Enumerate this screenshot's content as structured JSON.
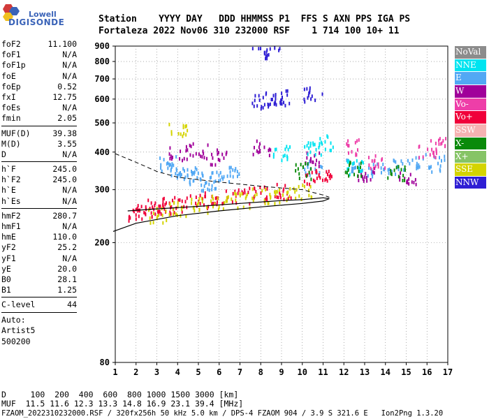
{
  "logo": {
    "top": "Lowell",
    "bottom": "DIGISONDE"
  },
  "header": {
    "row1": "Station    YYYY DAY   DDD HHMMSS P1  FFS S AXN PPS IGA PS",
    "row2": "Fortaleza 2022 Nov06 310 232000 RSF    1 714 100 10+ 11"
  },
  "params": [
    {
      "name": "foF2",
      "value": "11.100"
    },
    {
      "name": "foF1",
      "value": "N/A"
    },
    {
      "name": "foF1p",
      "value": "N/A"
    },
    {
      "name": "foE",
      "value": "N/A"
    },
    {
      "name": "foEp",
      "value": "0.52"
    },
    {
      "name": "fxI",
      "value": "12.75"
    },
    {
      "name": "foEs",
      "value": "N/A"
    },
    {
      "name": "fmin",
      "value": "2.05"
    },
    {
      "name": "MUF(D)",
      "value": "39.38"
    },
    {
      "name": "M(D)",
      "value": "3.55"
    },
    {
      "name": "D",
      "value": "N/A"
    },
    {
      "name": "h`F",
      "value": "245.0"
    },
    {
      "name": "h`F2",
      "value": "245.0"
    },
    {
      "name": "h`E",
      "value": "N/A"
    },
    {
      "name": "h`Es",
      "value": "N/A"
    },
    {
      "name": "hmF2",
      "value": "280.7"
    },
    {
      "name": "hmF1",
      "value": "N/A"
    },
    {
      "name": "hmE",
      "value": "110.0"
    },
    {
      "name": "yF2",
      "value": "25.2"
    },
    {
      "name": "yF1",
      "value": "N/A"
    },
    {
      "name": "yE",
      "value": "20.0"
    },
    {
      "name": "B0",
      "value": "28.1"
    },
    {
      "name": "B1",
      "value": "1.25"
    },
    {
      "name": "C-level",
      "value": "44"
    }
  ],
  "auto": {
    "line1": "Auto:",
    "line2": "Artist5",
    "line3": "500200"
  },
  "footer": {
    "d_row": "D     100  200  400  600  800 1000 1500 3000 [km]",
    "muf_row": "MUF  11.5 11.6 12.3 13.3 14.8 16.9 23.1 39.4 [MHz]",
    "file_row": "FZAOM_2022310232000.RSF / 320fx256h 50 kHz 5.0 km / DPS-4 FZAOM 904 / 3.9 S 321.6 E   Ion2Png 1.3.20"
  },
  "legend": [
    {
      "label": "NoVal",
      "color": "#8c8c8c"
    },
    {
      "label": "NNE",
      "color": "#00e4f0"
    },
    {
      "label": "E",
      "color": "#52a8f4"
    },
    {
      "label": "W",
      "color": "#a0009a"
    },
    {
      "label": "Vo-",
      "color": "#ee3ea8"
    },
    {
      "label": "Vo+",
      "color": "#f0003a"
    },
    {
      "label": "SSW",
      "color": "#f6b2b2"
    },
    {
      "label": "X-",
      "color": "#0a8a0a"
    },
    {
      "label": "X+",
      "color": "#86c466"
    },
    {
      "label": "SSE",
      "color": "#d4d400"
    },
    {
      "label": "NNW",
      "color": "#2e1ed4"
    }
  ],
  "chart_data": {
    "type": "scatter",
    "xlabel": "",
    "ylabel": "",
    "xlim": [
      1,
      17
    ],
    "ylim": [
      80,
      900
    ],
    "y_scale": "log",
    "x_ticks": [
      1,
      2,
      3,
      4,
      5,
      6,
      7,
      8,
      9,
      10,
      11,
      12,
      13,
      14,
      15,
      16,
      17
    ],
    "y_ticks": [
      80,
      200,
      300,
      400,
      500,
      600,
      700,
      800,
      900
    ],
    "grid": "dotted",
    "legend_position": "right",
    "series": [
      {
        "name": "E",
        "color": "#52a8f4",
        "points": [
          [
            3.5,
            370
          ],
          [
            4,
            350
          ],
          [
            4.5,
            340
          ],
          [
            5,
            330
          ],
          [
            5.5,
            320
          ],
          [
            6,
            330
          ],
          [
            6.5,
            340
          ],
          [
            10.5,
            360
          ],
          [
            12.5,
            370
          ],
          [
            13.5,
            350
          ],
          [
            14.5,
            360
          ],
          [
            15.5,
            380
          ],
          [
            16.5,
            370
          ]
        ]
      },
      {
        "name": "Vo+",
        "color": "#f0003a",
        "points": [
          [
            2,
            250
          ],
          [
            2.5,
            260
          ],
          [
            3,
            265
          ],
          [
            3.5,
            268
          ],
          [
            4,
            272
          ],
          [
            5,
            280
          ],
          [
            6,
            285
          ],
          [
            7,
            290
          ],
          [
            8,
            295
          ],
          [
            9,
            300
          ],
          [
            10.5,
            330
          ],
          [
            11,
            340
          ]
        ]
      },
      {
        "name": "SSE",
        "color": "#d4d400",
        "points": [
          [
            3,
            250
          ],
          [
            4,
            260
          ],
          [
            5,
            270
          ],
          [
            6,
            275
          ],
          [
            7,
            280
          ],
          [
            8,
            290
          ],
          [
            9,
            290
          ],
          [
            10,
            300
          ],
          [
            4,
            480
          ]
        ]
      },
      {
        "name": "NNW",
        "color": "#2e1ed4",
        "points": [
          [
            8,
            600
          ],
          [
            8.5,
            605
          ],
          [
            9,
            615
          ],
          [
            8,
            880
          ],
          [
            8.5,
            890
          ],
          [
            10.5,
            630
          ]
        ]
      },
      {
        "name": "W",
        "color": "#a0009a",
        "points": [
          [
            4,
            400
          ],
          [
            5,
            410
          ],
          [
            6,
            390
          ],
          [
            8,
            420
          ],
          [
            10.5,
            380
          ],
          [
            13,
            340
          ],
          [
            15,
            330
          ]
        ]
      },
      {
        "name": "Vo-",
        "color": "#ee3ea8",
        "points": [
          [
            12.5,
            420
          ],
          [
            13.5,
            380
          ],
          [
            16,
            410
          ],
          [
            16.5,
            430
          ]
        ]
      },
      {
        "name": "NNE",
        "color": "#00e4f0",
        "points": [
          [
            9,
            400
          ],
          [
            10.5,
            420
          ],
          [
            11,
            435
          ],
          [
            12.5,
            360
          ]
        ]
      },
      {
        "name": "X-",
        "color": "#0a8a0a",
        "points": [
          [
            10,
            350
          ],
          [
            12.5,
            355
          ],
          [
            14.5,
            345
          ]
        ]
      }
    ],
    "profile_curves": {
      "solid_lower": [
        [
          0.9,
          218
        ],
        [
          2,
          232
        ],
        [
          4,
          246
        ],
        [
          6,
          255
        ],
        [
          8,
          263
        ],
        [
          10,
          270
        ],
        [
          11,
          275
        ],
        [
          11.3,
          280
        ]
      ],
      "solid_upper": [
        [
          1.6,
          255
        ],
        [
          3,
          259
        ],
        [
          5,
          264
        ],
        [
          7,
          270
        ],
        [
          9,
          276
        ],
        [
          10,
          278
        ],
        [
          11,
          282
        ],
        [
          11.3,
          280
        ]
      ],
      "dashed": [
        [
          1,
          395
        ],
        [
          2,
          370
        ],
        [
          3,
          345
        ],
        [
          4,
          330
        ],
        [
          6,
          318
        ],
        [
          8,
          308
        ],
        [
          10,
          300
        ],
        [
          11,
          288
        ],
        [
          11.3,
          283
        ]
      ]
    }
  }
}
